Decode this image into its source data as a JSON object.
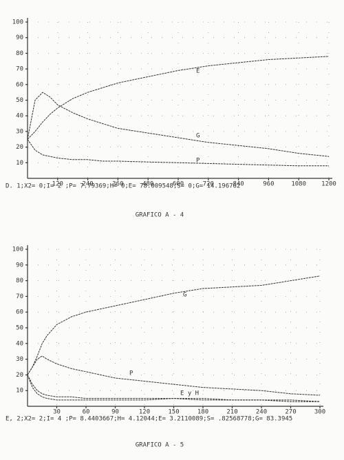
{
  "chart_data": [
    {
      "type": "line",
      "x": [
        0,
        30,
        60,
        90,
        120,
        180,
        240,
        300,
        360,
        480,
        600,
        720,
        840,
        960,
        1080,
        1200
      ],
      "series": [
        {
          "name": "E",
          "color": "#333333",
          "values": [
            25,
            30,
            36,
            41,
            45,
            51,
            55,
            58,
            61,
            65,
            69,
            72,
            74,
            76,
            77,
            78
          ]
        },
        {
          "name": "G",
          "color": "#333333",
          "values": [
            25,
            50,
            55,
            52,
            47,
            42,
            38,
            35,
            32,
            29,
            26,
            23,
            21,
            19,
            16,
            14
          ]
        },
        {
          "name": "P",
          "color": "#333333",
          "values": [
            25,
            18,
            15,
            14,
            13,
            12,
            12,
            11,
            11,
            10.5,
            10,
            9.5,
            9,
            8.5,
            8,
            8
          ]
        }
      ],
      "xlim": [
        0,
        1200
      ],
      "xticks": [
        120,
        240,
        360,
        480,
        600,
        720,
        840,
        960,
        1080,
        1200
      ],
      "ylim": [
        0,
        100
      ],
      "yticks": [
        10,
        20,
        30,
        40,
        50,
        60,
        70,
        80,
        90,
        100
      ],
      "grid": true,
      "footer": "D. 1;X2= 0;I= 2 ;P= 7.79369;H= 0;E= 78.009548;S= 0;G= 14.196762",
      "caption": "GRAFICO  A - 4"
    },
    {
      "type": "line",
      "x": [
        0,
        5,
        10,
        15,
        20,
        30,
        45,
        60,
        75,
        90,
        120,
        150,
        180,
        210,
        240,
        270,
        300
      ],
      "series": [
        {
          "name": "G",
          "color": "#333333",
          "values": [
            20,
            25,
            32,
            40,
            45,
            52,
            57,
            60,
            62,
            64,
            68,
            72,
            75,
            76,
            77,
            80,
            83
          ]
        },
        {
          "name": "P",
          "color": "#333333",
          "values": [
            20,
            25,
            30,
            32,
            30,
            27,
            24,
            22,
            20,
            18,
            16,
            14,
            12,
            11,
            10,
            8,
            7
          ]
        },
        {
          "color": "#333333",
          "values": [
            20,
            14,
            10,
            8,
            7,
            6,
            6,
            5,
            5,
            5,
            5,
            5,
            4,
            4,
            4,
            4,
            3
          ]
        },
        {
          "color": "#333333",
          "values": [
            20,
            12,
            8,
            6,
            5,
            4,
            4,
            4,
            4,
            4,
            4,
            5,
            5,
            4,
            4,
            3,
            3
          ]
        }
      ],
      "annotations": [
        "E y H"
      ],
      "xlim": [
        0,
        300
      ],
      "xticks": [
        30,
        60,
        90,
        120,
        150,
        180,
        210,
        240,
        270,
        300
      ],
      "ylim": [
        0,
        100
      ],
      "yticks": [
        10,
        20,
        30,
        40,
        50,
        60,
        70,
        80,
        90,
        100
      ],
      "grid": true,
      "footer": "E, 2;X2= 2;I= 4 ;P= 8.4403667;H= 4.12044;E= 3.2110089;S= .82568778;G= 83.3945",
      "caption": "GRAFICO  A - 5"
    }
  ]
}
